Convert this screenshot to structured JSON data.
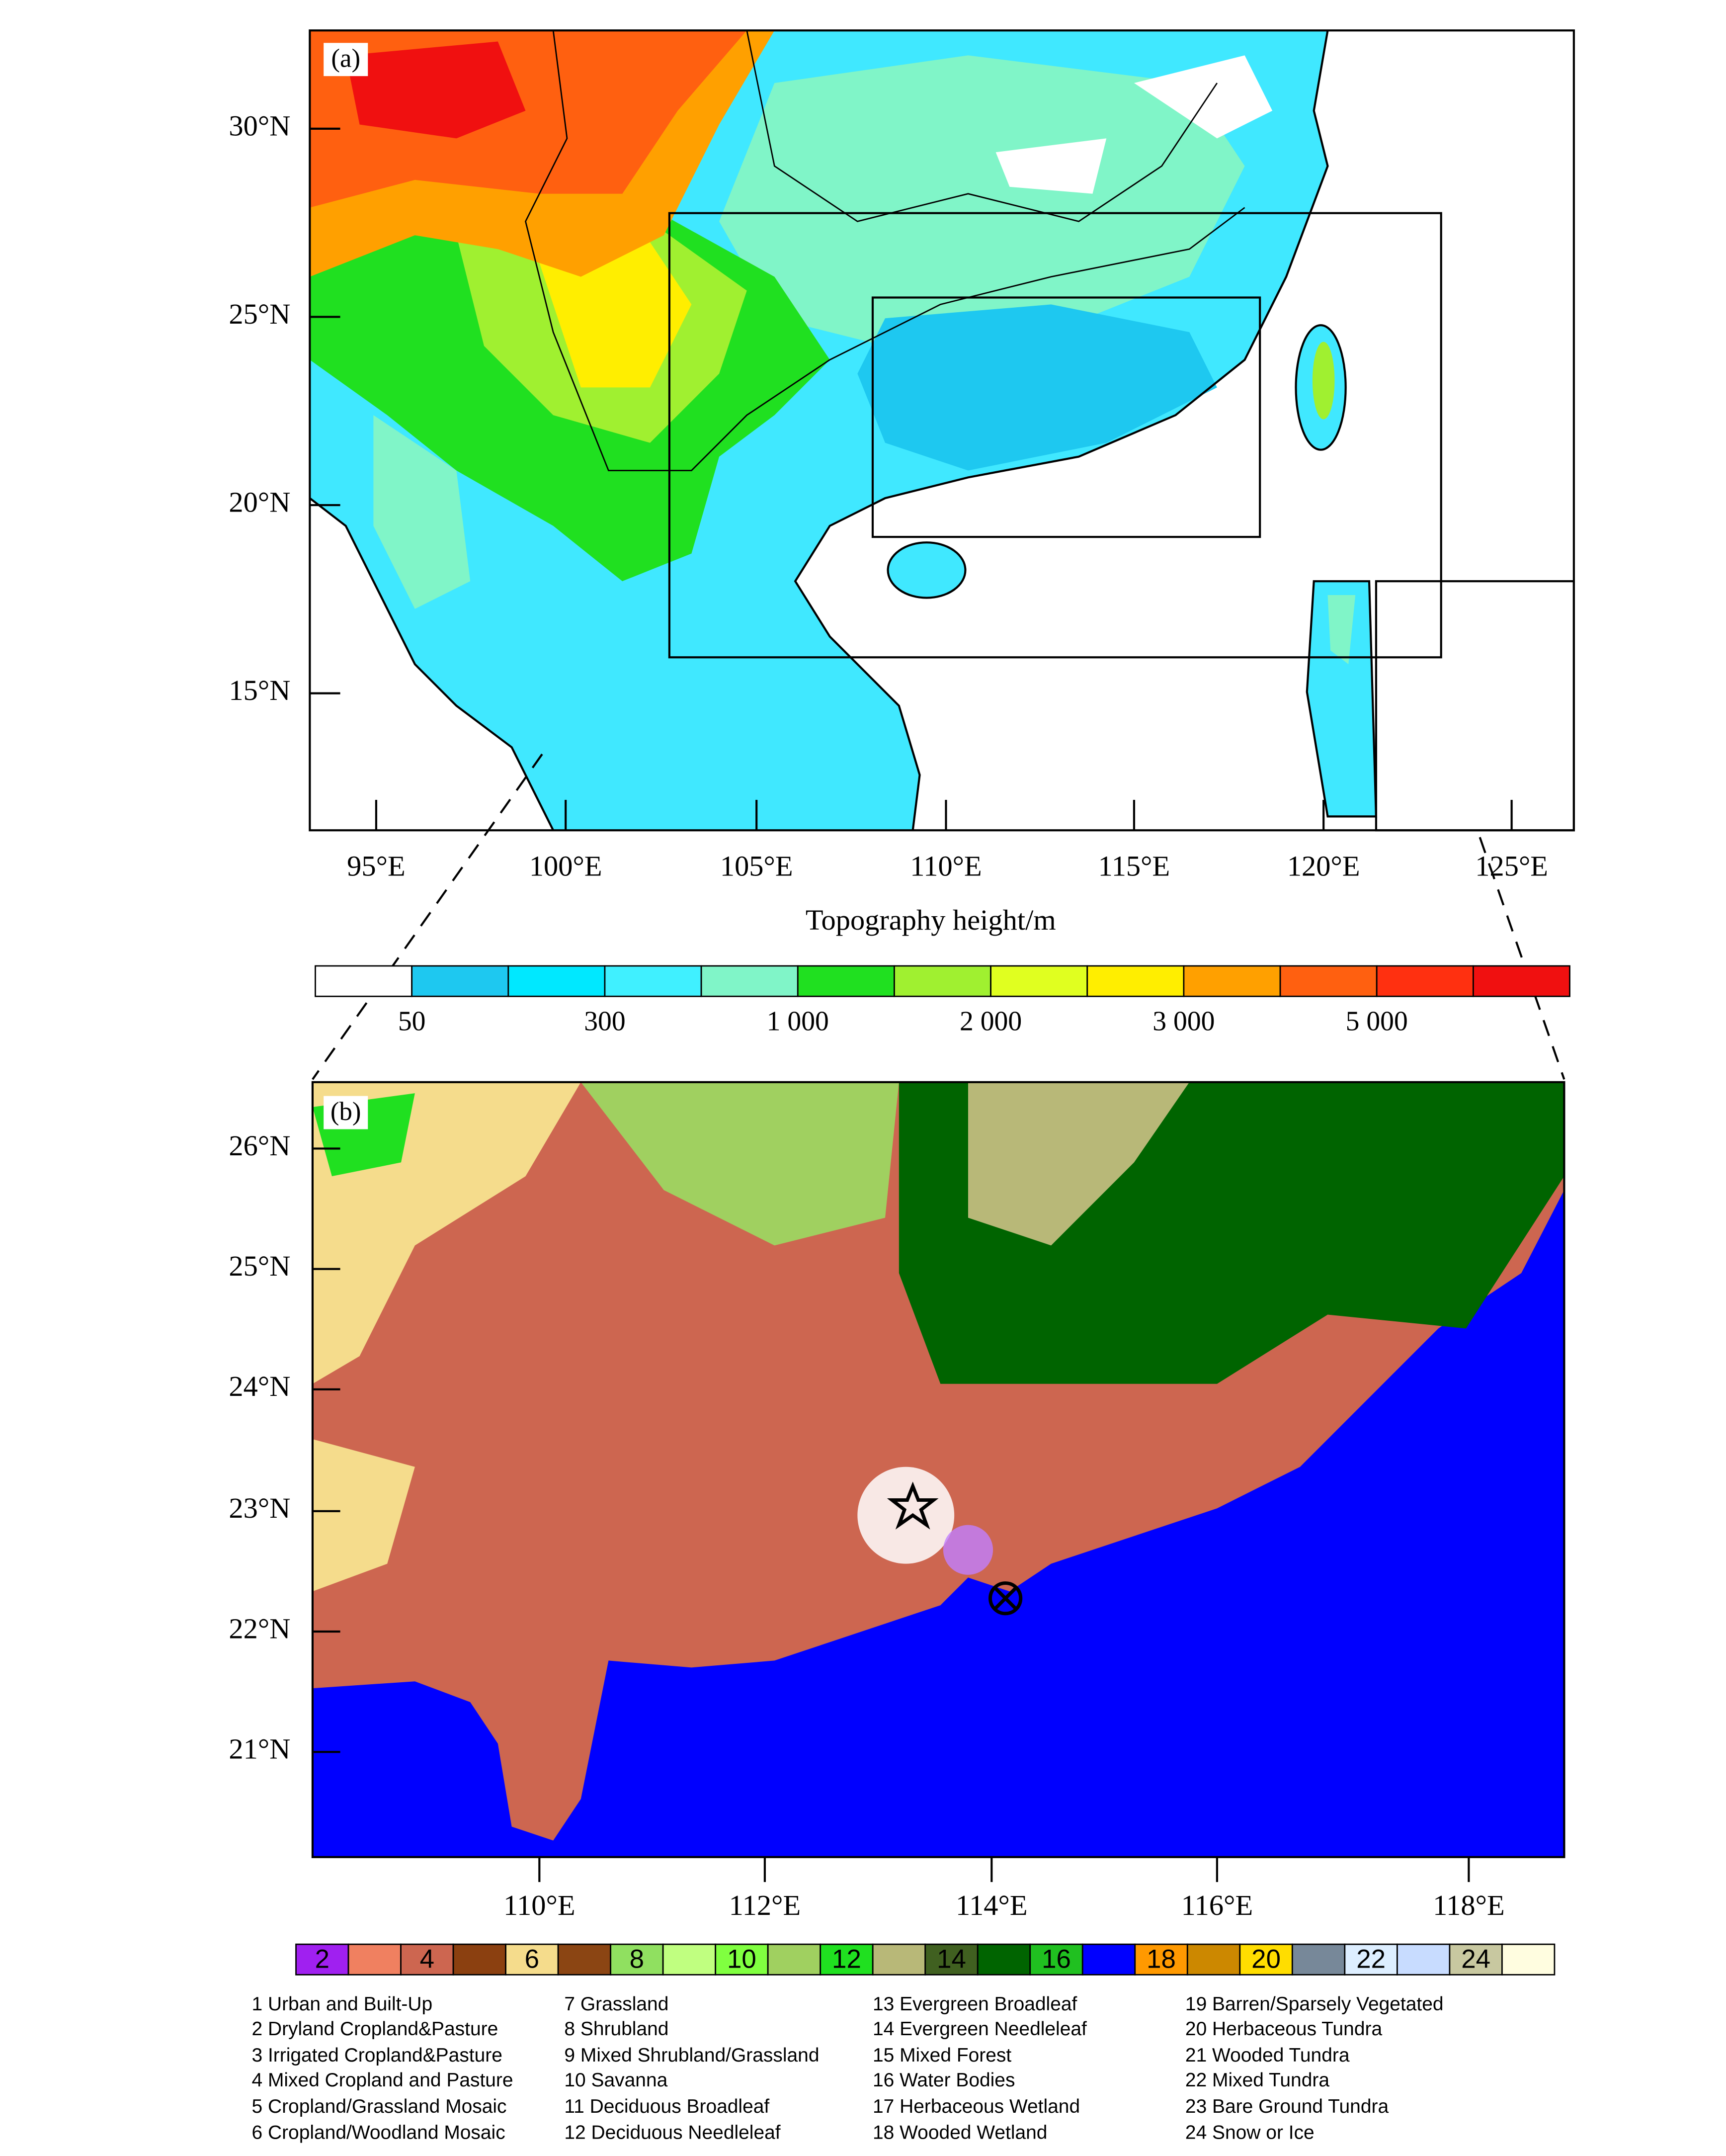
{
  "panel_a": {
    "label": "(a)",
    "lat_labels": [
      "30°N",
      "25°N",
      "20°N",
      "15°N"
    ],
    "lon_labels": [
      "95°E",
      "100°E",
      "105°E",
      "110°E",
      "115°E",
      "120°E",
      "125°E"
    ],
    "colorbar_title": "Topography height/m",
    "colorbar_colors": [
      "#ffffff",
      "#1ec8f0",
      "#00e8ff",
      "#40f0ff",
      "#80f5c8",
      "#20e020",
      "#a0f030",
      "#e0ff20",
      "#ffee00",
      "#ffa000",
      "#ff6010",
      "#ff3010",
      "#f01010"
    ],
    "colorbar_labels": [
      "50",
      "300",
      "1 000",
      "2 000",
      "3 000",
      "5 000"
    ]
  },
  "panel_b": {
    "label": "(b)",
    "lat_labels": [
      "26°N",
      "25°N",
      "24°N",
      "23°N",
      "22°N",
      "21°N"
    ],
    "lon_labels": [
      "110°E",
      "112°E",
      "114°E",
      "116°E",
      "118°E"
    ],
    "colorbar_colors": [
      "#a020f0",
      "#f08060",
      "#cd6650",
      "#8b4010",
      "#f5dc8c",
      "#8b4513",
      "#90e060",
      "#c0ff80",
      "#80ff40",
      "#a0d060",
      "#20e020",
      "#b8b878",
      "#406020",
      "#006400",
      "#20c020",
      "#0000ff",
      "#ff9900",
      "#cc8800",
      "#ffdd00",
      "#778899",
      "#ddeeff",
      "#c8dcff",
      "#c8c8a0",
      "#fffde0"
    ],
    "colorbar_labels": [
      "2",
      "4",
      "6",
      "8",
      "10",
      "12",
      "14",
      "16",
      "18",
      "20",
      "22",
      "24"
    ],
    "legend": [
      "1  Urban and Built-Up",
      "2  Dryland Cropland&Pasture",
      "3  Irrigated Cropland&Pasture",
      "4  Mixed Cropland and Pasture",
      "5  Cropland/Grassland Mosaic",
      "6  Cropland/Woodland Mosaic",
      "7  Grassland",
      "8  Shrubland",
      "9  Mixed Shrubland/Grassland",
      "10  Savanna",
      "11  Deciduous Broadleaf",
      "12  Deciduous Needleleaf",
      "13  Evergreen Broadleaf",
      "14  Evergreen Needleleaf",
      "15  Mixed Forest",
      "16  Water Bodies",
      "17  Herbaceous Wetland",
      "18  Wooded Wetland",
      "19  Barren/Sparsely Vegetated",
      "20  Herbaceous Tundra",
      "21  Wooded Tundra",
      "22  Mixed Tundra",
      "23  Bare Ground Tundra",
      "24  Snow or Ice"
    ]
  }
}
